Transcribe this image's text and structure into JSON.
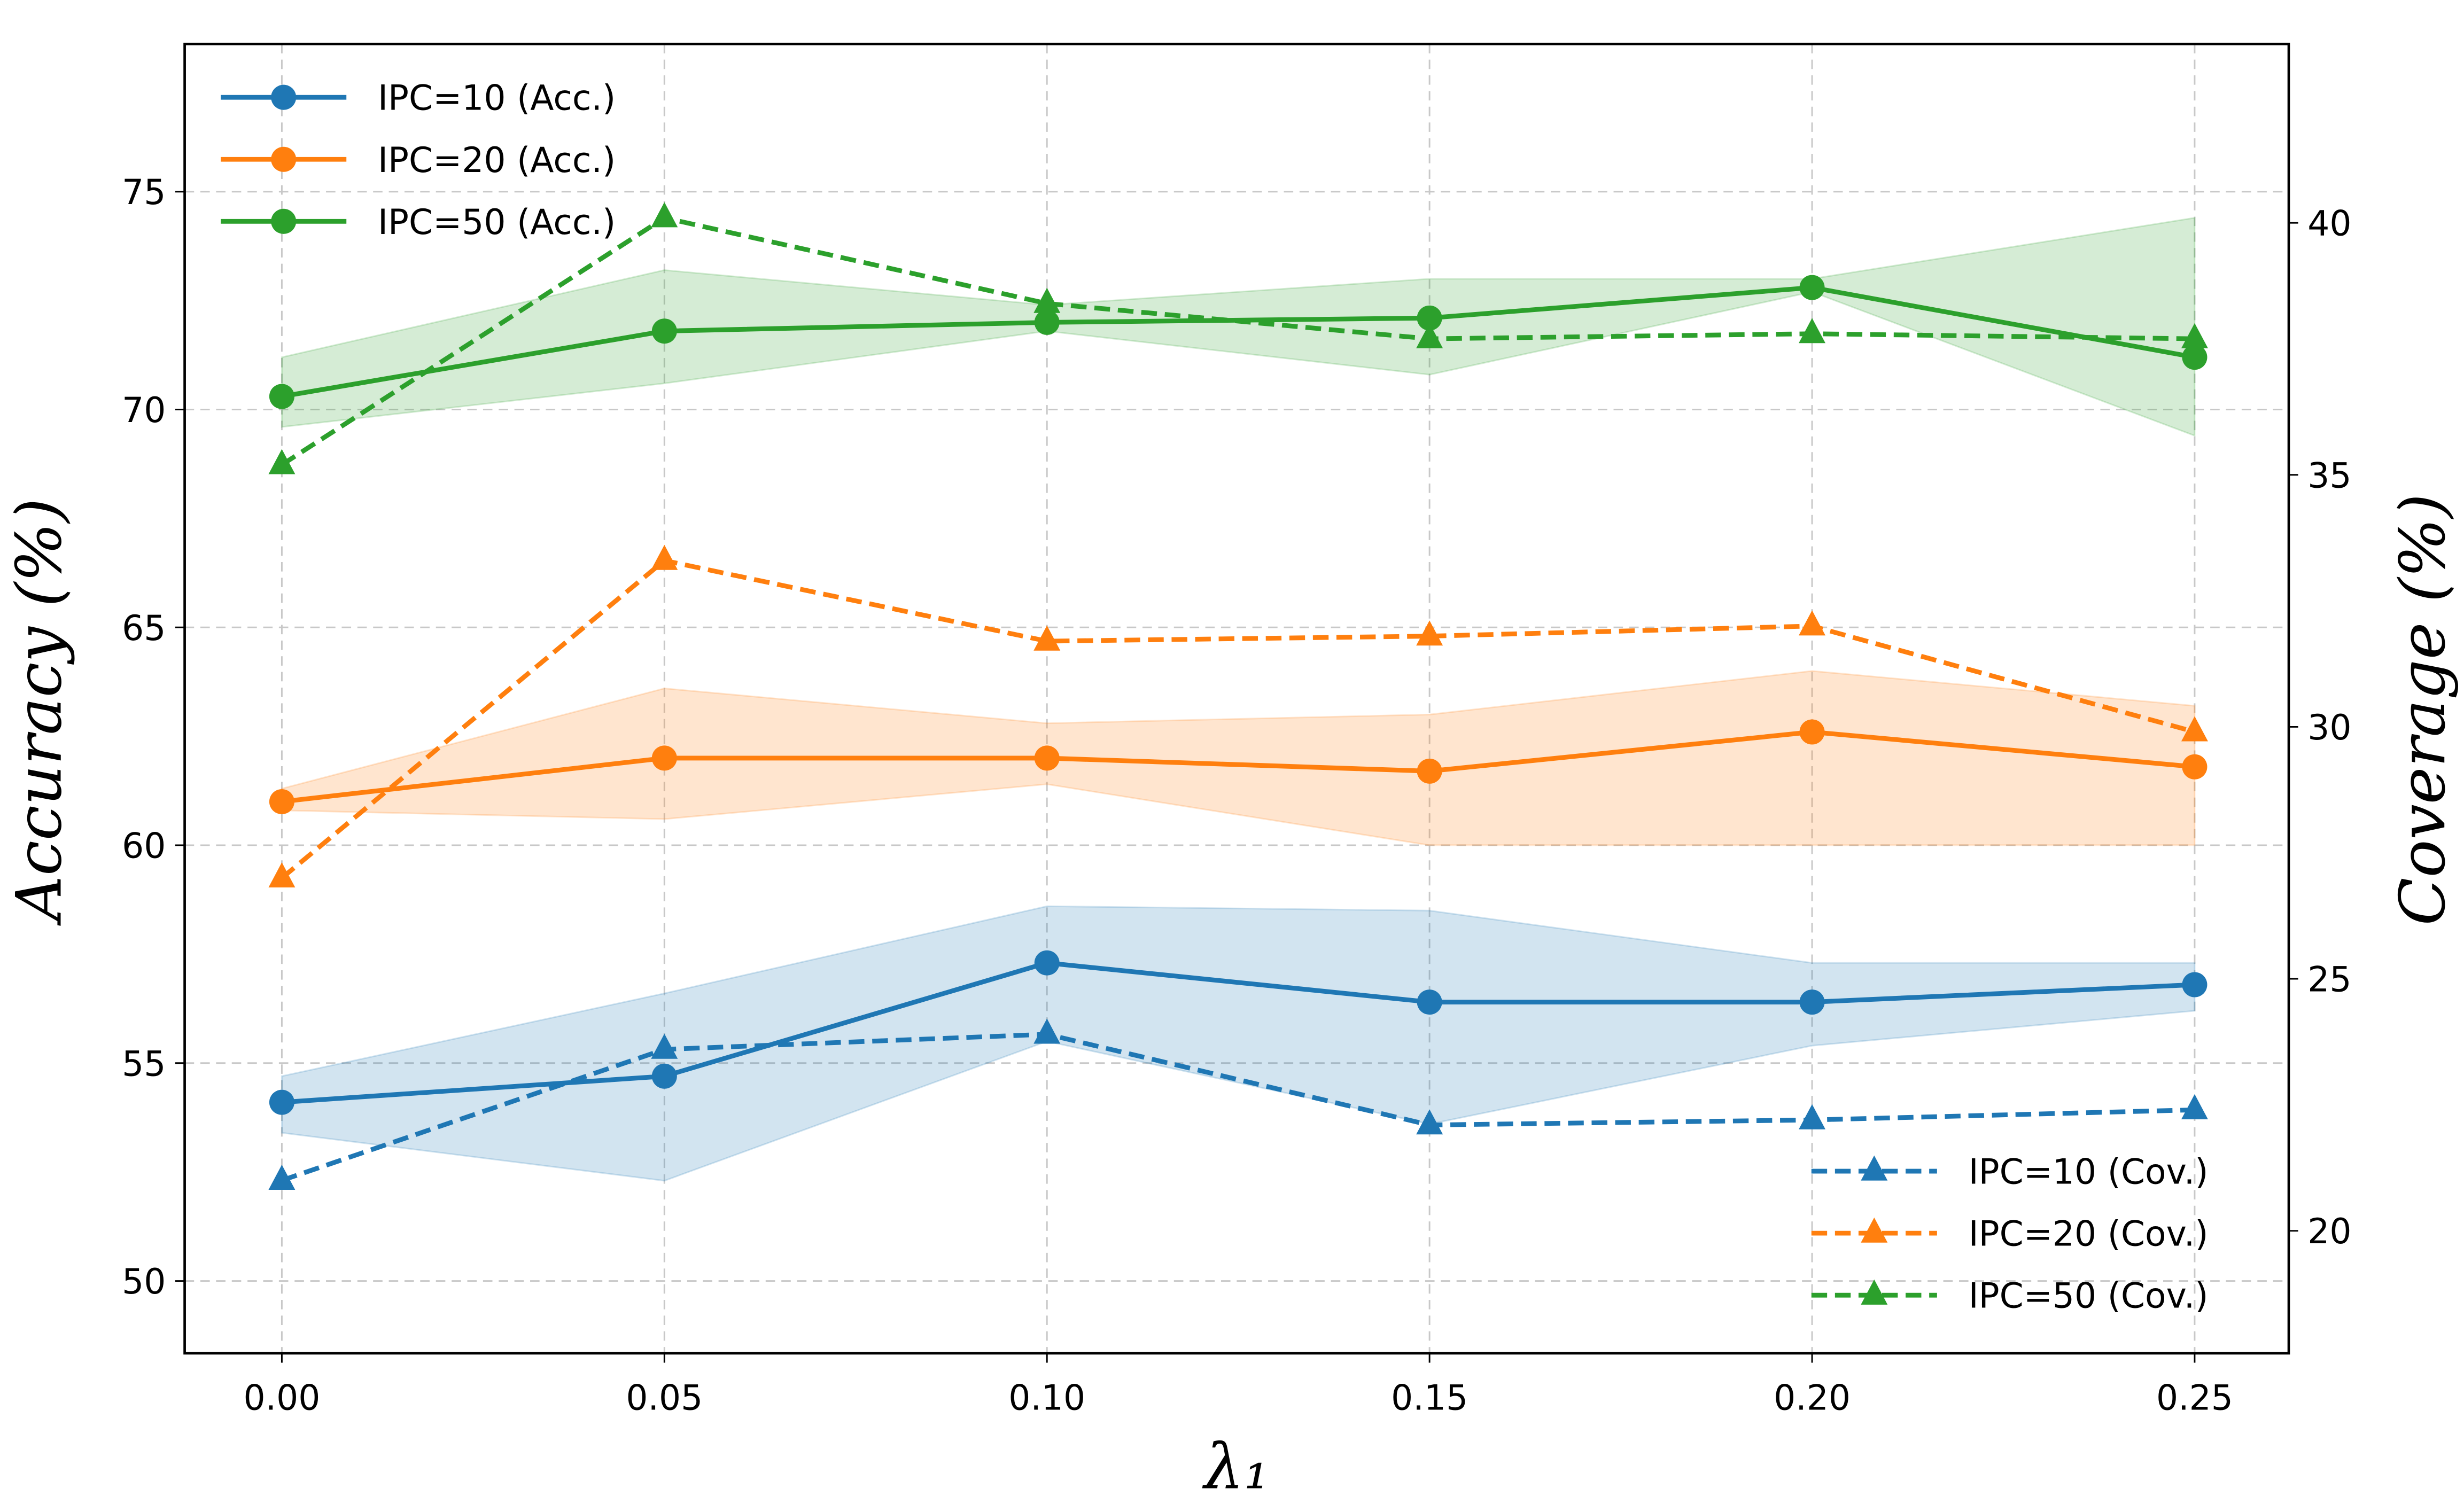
{
  "chart_data": {
    "type": "line",
    "xlabel": "λ₁",
    "ylabel": "Accuracy (%)",
    "ylabel_right": "Coverage (%)",
    "x": [
      0.0,
      0.05,
      0.1,
      0.15,
      0.2,
      0.25
    ],
    "x_tick_labels": [
      "0.00",
      "0.05",
      "0.10",
      "0.15",
      "0.20",
      "0.25"
    ],
    "xlim": [
      -0.0127,
      0.2623
    ],
    "ylim": [
      48.34,
      78.39
    ],
    "ylim_right": [
      17.57,
      43.55
    ],
    "y_ticks": [
      50,
      55,
      60,
      65,
      70,
      75
    ],
    "y_ticks_right": [
      20,
      25,
      30,
      35,
      40
    ],
    "grid": true,
    "legend_left": "top-left",
    "legend_right": "bottom-right",
    "series": [
      {
        "name": "IPC=10 (Acc.)",
        "axis": "left",
        "style": "solid",
        "marker": "circle",
        "color": "#1f77b4",
        "values": [
          54.1,
          54.7,
          57.3,
          56.4,
          56.4,
          56.8
        ],
        "band_lower": [
          53.4,
          52.3,
          55.5,
          53.6,
          55.4,
          56.2
        ],
        "band_upper": [
          54.7,
          56.6,
          58.6,
          58.5,
          57.3,
          57.3
        ]
      },
      {
        "name": "IPC=20 (Acc.)",
        "axis": "left",
        "style": "solid",
        "marker": "circle",
        "color": "#ff7f0e",
        "values": [
          61.0,
          62.0,
          62.0,
          61.7,
          62.6,
          61.8
        ],
        "band_lower": [
          60.8,
          60.6,
          61.4,
          60.0,
          60.0,
          60.0
        ],
        "band_upper": [
          61.3,
          63.6,
          62.8,
          63.0,
          64.0,
          63.2
        ]
      },
      {
        "name": "IPC=50 (Acc.)",
        "axis": "left",
        "style": "solid",
        "marker": "circle",
        "color": "#2ca02c",
        "values": [
          70.3,
          71.8,
          72.0,
          72.1,
          72.8,
          71.2
        ],
        "band_lower": [
          69.6,
          70.6,
          71.8,
          70.8,
          72.7,
          69.4
        ],
        "band_upper": [
          71.2,
          73.2,
          72.4,
          73.0,
          73.0,
          74.4
        ]
      },
      {
        "name": "IPC=10 (Cov.)",
        "axis": "right",
        "style": "dashed",
        "marker": "triangle",
        "color": "#1f77b4",
        "values": [
          21.0,
          23.6,
          23.9,
          22.1,
          22.2,
          22.4
        ]
      },
      {
        "name": "IPC=20 (Cov.)",
        "axis": "right",
        "style": "dashed",
        "marker": "triangle",
        "color": "#ff7f0e",
        "values": [
          27.0,
          33.3,
          31.7,
          31.8,
          32.0,
          29.9
        ]
      },
      {
        "name": "IPC=50 (Cov.)",
        "axis": "right",
        "style": "dashed",
        "marker": "triangle",
        "color": "#2ca02c",
        "values": [
          35.2,
          40.1,
          38.4,
          37.7,
          37.8,
          37.7
        ]
      }
    ]
  }
}
